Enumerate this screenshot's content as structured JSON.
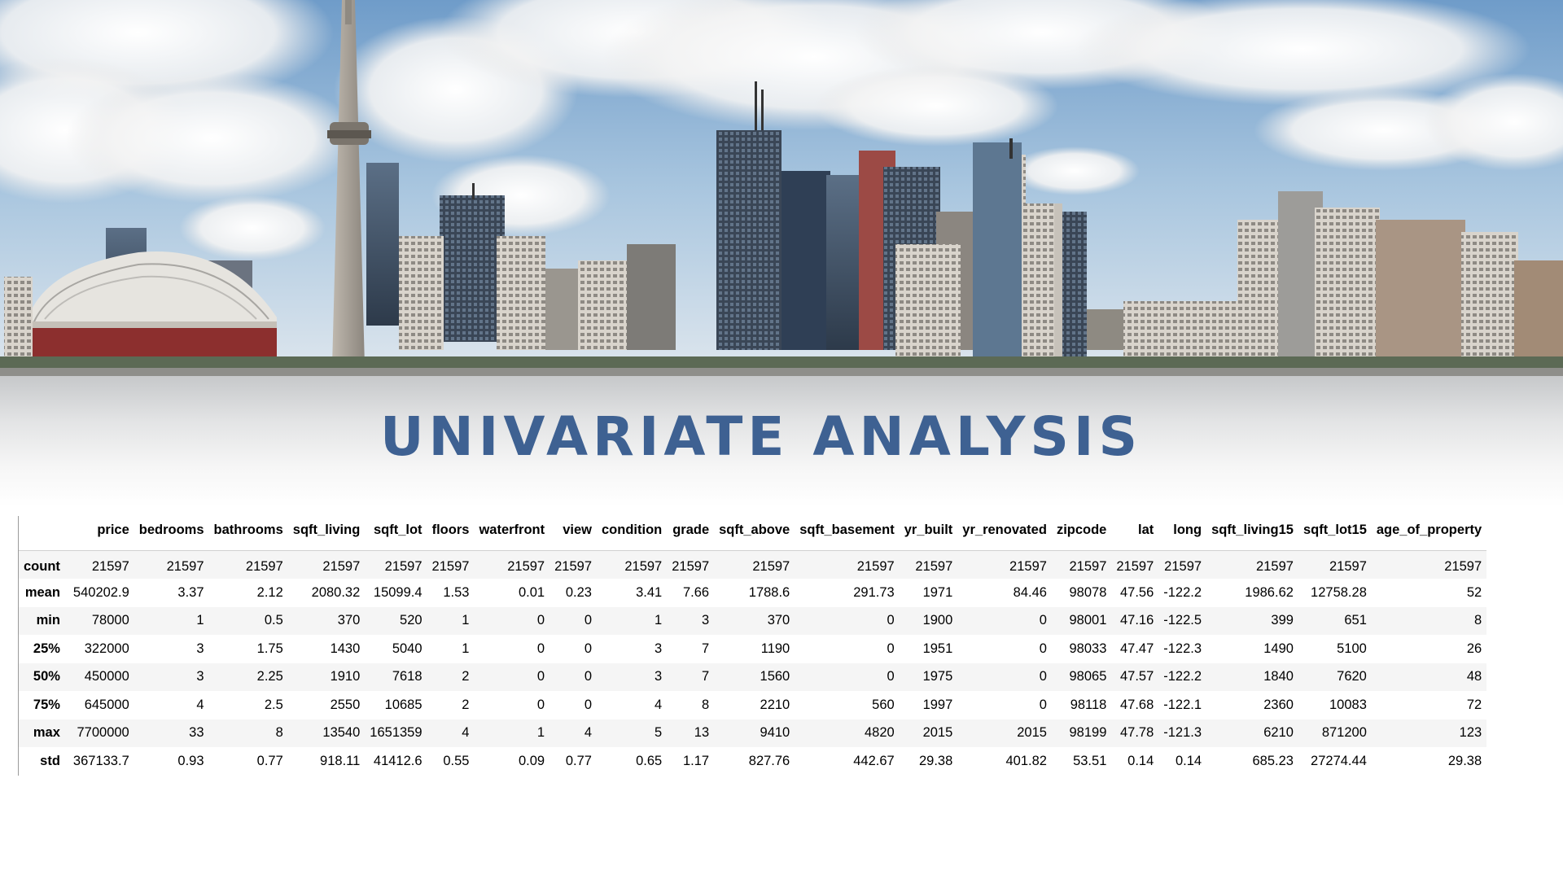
{
  "slide": {
    "title": "UNIVARIATE ANALYSIS",
    "banner_image": "toronto-skyline-photo"
  },
  "table": {
    "columns": [
      "price",
      "bedrooms",
      "bathrooms",
      "sqft_living",
      "sqft_lot",
      "floors",
      "waterfront",
      "view",
      "condition",
      "grade",
      "sqft_above",
      "sqft_basement",
      "yr_built",
      "yr_renovated",
      "zipcode",
      "lat",
      "long",
      "sqft_living15",
      "sqft_lot15",
      "age_of_property"
    ],
    "rows": [
      {
        "label": "count",
        "values": [
          "21597",
          "21597",
          "21597",
          "21597",
          "21597",
          "21597",
          "21597",
          "21597",
          "21597",
          "21597",
          "21597",
          "21597",
          "21597",
          "21597",
          "21597",
          "21597",
          "21597",
          "21597",
          "21597",
          "21597"
        ]
      },
      {
        "label": "mean",
        "values": [
          "540202.9",
          "3.37",
          "2.12",
          "2080.32",
          "15099.4",
          "1.53",
          "0.01",
          "0.23",
          "3.41",
          "7.66",
          "1788.6",
          "291.73",
          "1971",
          "84.46",
          "98078",
          "47.56",
          "-122.2",
          "1986.62",
          "12758.28",
          "52"
        ]
      },
      {
        "label": "min",
        "values": [
          "78000",
          "1",
          "0.5",
          "370",
          "520",
          "1",
          "0",
          "0",
          "1",
          "3",
          "370",
          "0",
          "1900",
          "0",
          "98001",
          "47.16",
          "-122.5",
          "399",
          "651",
          "8"
        ]
      },
      {
        "label": "25%",
        "values": [
          "322000",
          "3",
          "1.75",
          "1430",
          "5040",
          "1",
          "0",
          "0",
          "3",
          "7",
          "1190",
          "0",
          "1951",
          "0",
          "98033",
          "47.47",
          "-122.3",
          "1490",
          "5100",
          "26"
        ]
      },
      {
        "label": "50%",
        "values": [
          "450000",
          "3",
          "2.25",
          "1910",
          "7618",
          "2",
          "0",
          "0",
          "3",
          "7",
          "1560",
          "0",
          "1975",
          "0",
          "98065",
          "47.57",
          "-122.2",
          "1840",
          "7620",
          "48"
        ]
      },
      {
        "label": "75%",
        "values": [
          "645000",
          "4",
          "2.5",
          "2550",
          "10685",
          "2",
          "0",
          "0",
          "4",
          "8",
          "2210",
          "560",
          "1997",
          "0",
          "98118",
          "47.68",
          "-122.1",
          "2360",
          "10083",
          "72"
        ]
      },
      {
        "label": "max",
        "values": [
          "7700000",
          "33",
          "8",
          "13540",
          "1651359",
          "4",
          "1",
          "4",
          "5",
          "13",
          "9410",
          "4820",
          "2015",
          "2015",
          "98199",
          "47.78",
          "-121.3",
          "6210",
          "871200",
          "123"
        ]
      },
      {
        "label": "std",
        "values": [
          "367133.7",
          "0.93",
          "0.77",
          "918.11",
          "41412.6",
          "0.55",
          "0.09",
          "0.77",
          "0.65",
          "1.17",
          "827.76",
          "442.67",
          "29.38",
          "401.82",
          "53.51",
          "0.14",
          "0.14",
          "685.23",
          "27274.44",
          "29.38"
        ]
      }
    ]
  }
}
